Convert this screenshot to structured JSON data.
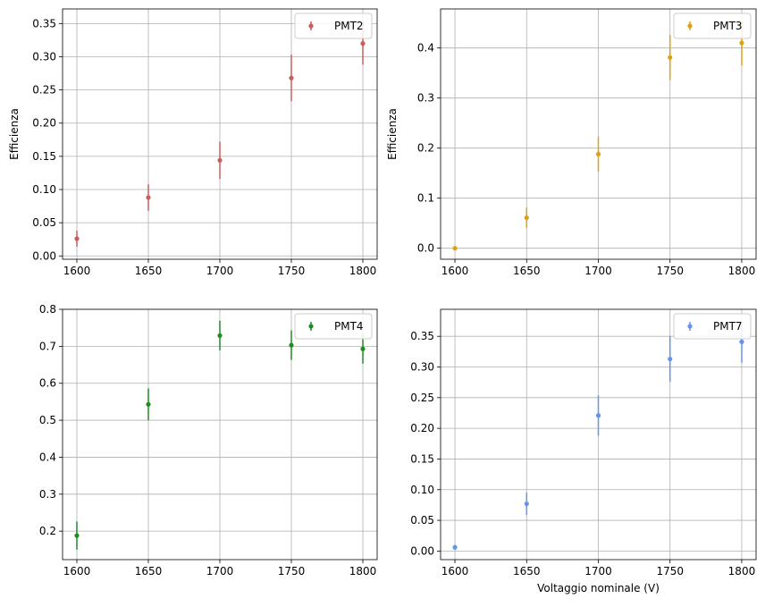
{
  "chart_data": [
    {
      "type": "scatter",
      "series": [
        {
          "name": "PMT2",
          "color": "#cd5c5c",
          "x": [
            1600,
            1650,
            1700,
            1750,
            1800
          ],
          "y": [
            0.026,
            0.088,
            0.144,
            0.268,
            0.32
          ],
          "yerr": [
            0.012,
            0.02,
            0.028,
            0.035,
            0.032
          ]
        }
      ],
      "xlabel": "",
      "ylabel": "Efficienza",
      "xlim": [
        1590,
        1810
      ],
      "ylim": [
        -0.005,
        0.372
      ],
      "xticks": [
        1600,
        1650,
        1700,
        1750,
        1800
      ],
      "yticks": [
        0.0,
        0.05,
        0.1,
        0.15,
        0.2,
        0.25,
        0.3,
        0.35
      ],
      "ytick_labels": [
        "0.00",
        "0.05",
        "0.10",
        "0.15",
        "0.20",
        "0.25",
        "0.30",
        "0.35"
      ],
      "grid": true,
      "legend": "top-right"
    },
    {
      "type": "scatter",
      "series": [
        {
          "name": "PMT3",
          "color": "#e0a010",
          "x": [
            1600,
            1650,
            1700,
            1750,
            1800
          ],
          "y": [
            0.0,
            0.061,
            0.188,
            0.381,
            0.41
          ],
          "yerr": [
            0.002,
            0.02,
            0.035,
            0.045,
            0.045
          ]
        }
      ],
      "xlabel": "",
      "ylabel": "Efficienza",
      "xlim": [
        1590,
        1810
      ],
      "ylim": [
        -0.022,
        0.478
      ],
      "xticks": [
        1600,
        1650,
        1700,
        1750,
        1800
      ],
      "yticks": [
        0.0,
        0.1,
        0.2,
        0.3,
        0.4
      ],
      "ytick_labels": [
        "0.0",
        "0.1",
        "0.2",
        "0.3",
        "0.4"
      ],
      "grid": true,
      "legend": "top-right"
    },
    {
      "type": "scatter",
      "series": [
        {
          "name": "PMT4",
          "color": "#228b22",
          "x": [
            1600,
            1650,
            1700,
            1750,
            1800
          ],
          "y": [
            0.188,
            0.543,
            0.729,
            0.703,
            0.693
          ],
          "yerr": [
            0.038,
            0.043,
            0.04,
            0.04,
            0.04
          ]
        }
      ],
      "xlabel": "",
      "ylabel": "",
      "xlim": [
        1590,
        1810
      ],
      "ylim": [
        0.123,
        0.8
      ],
      "xticks": [
        1600,
        1650,
        1700,
        1750,
        1800
      ],
      "yticks": [
        0.2,
        0.3,
        0.4,
        0.5,
        0.6,
        0.7,
        0.8
      ],
      "ytick_labels": [
        "0.2",
        "0.3",
        "0.4",
        "0.5",
        "0.6",
        "0.7",
        "0.8"
      ],
      "grid": true,
      "legend": "top-right"
    },
    {
      "type": "scatter",
      "series": [
        {
          "name": "PMT7",
          "color": "#6495ed",
          "x": [
            1600,
            1650,
            1700,
            1750,
            1800
          ],
          "y": [
            0.006,
            0.077,
            0.221,
            0.313,
            0.341
          ],
          "yerr": [
            0.004,
            0.018,
            0.033,
            0.037,
            0.034
          ]
        }
      ],
      "xlabel": "Voltaggio nominale (V)",
      "ylabel": "",
      "xlim": [
        1590,
        1810
      ],
      "ylim": [
        -0.014,
        0.394
      ],
      "xticks": [
        1600,
        1650,
        1700,
        1750,
        1800
      ],
      "yticks": [
        0.0,
        0.05,
        0.1,
        0.15,
        0.2,
        0.25,
        0.3,
        0.35
      ],
      "ytick_labels": [
        "0.00",
        "0.05",
        "0.10",
        "0.15",
        "0.20",
        "0.25",
        "0.30",
        "0.35"
      ],
      "grid": true,
      "legend": "top-right"
    }
  ]
}
